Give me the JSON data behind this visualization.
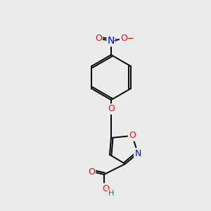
{
  "bg_color": "#ebebeb",
  "bond_color": "#000000",
  "atom_colors": {
    "O": "#ff0000",
    "N": "#0000ff",
    "O_minus": "#ff0000",
    "C": "#000000",
    "H": "#008080"
  },
  "font_size_atom": 9,
  "font_size_small": 7.5
}
